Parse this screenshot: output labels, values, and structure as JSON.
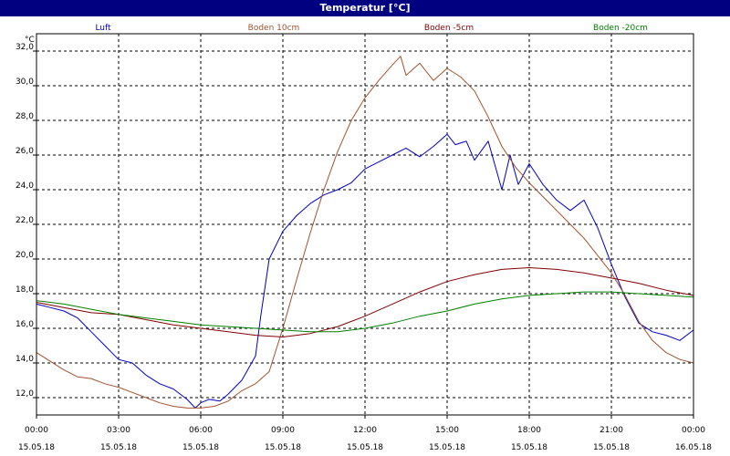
{
  "window": {
    "title": "Temperatur [°C]"
  },
  "chart_data": {
    "type": "line",
    "title": "Temperatur [°C]",
    "ylabel": "°C",
    "xlabel": "",
    "ylim": [
      11.0,
      33.0
    ],
    "y_ticks": [
      12.0,
      14.0,
      16.0,
      18.0,
      20.0,
      22.0,
      24.0,
      26.0,
      28.0,
      30.0,
      32.0
    ],
    "y_tick_labels": [
      "12,0",
      "14,0",
      "16,0",
      "18,0",
      "20,0",
      "22,0",
      "24,0",
      "26,0",
      "28,0",
      "30,0",
      "32,0"
    ],
    "xlim_hours": [
      0,
      24
    ],
    "x_ticks": [
      {
        "hour": 0,
        "time": "00:00",
        "date": "15.05.18"
      },
      {
        "hour": 3,
        "time": "03:00",
        "date": "15.05.18"
      },
      {
        "hour": 6,
        "time": "06:00",
        "date": "15.05.18"
      },
      {
        "hour": 9,
        "time": "09:00",
        "date": "15.05.18"
      },
      {
        "hour": 12,
        "time": "12:00",
        "date": "15.05.18"
      },
      {
        "hour": 15,
        "time": "15:00",
        "date": "15.05.18"
      },
      {
        "hour": 18,
        "time": "18:00",
        "date": "15.05.18"
      },
      {
        "hour": 21,
        "time": "21:00",
        "date": "15.05.18"
      },
      {
        "hour": 24,
        "time": "00:00",
        "date": "16.05.18"
      }
    ],
    "grid": true,
    "legend_position": "top",
    "series": [
      {
        "name": "Luft",
        "color": "#0000c0",
        "points": [
          [
            0,
            17.4
          ],
          [
            0.5,
            17.2
          ],
          [
            1,
            17.0
          ],
          [
            1.5,
            16.6
          ],
          [
            2,
            15.8
          ],
          [
            2.5,
            15.0
          ],
          [
            3,
            14.2
          ],
          [
            3.5,
            14.0
          ],
          [
            4,
            13.3
          ],
          [
            4.5,
            12.8
          ],
          [
            5,
            12.5
          ],
          [
            5.5,
            11.9
          ],
          [
            5.8,
            11.4
          ],
          [
            6,
            11.7
          ],
          [
            6.3,
            11.9
          ],
          [
            6.7,
            11.8
          ],
          [
            7,
            12.2
          ],
          [
            7.5,
            13.0
          ],
          [
            8,
            14.4
          ],
          [
            8.2,
            16.8
          ],
          [
            8.5,
            20.0
          ],
          [
            9,
            21.6
          ],
          [
            9.5,
            22.5
          ],
          [
            10,
            23.2
          ],
          [
            10.5,
            23.7
          ],
          [
            11,
            24.0
          ],
          [
            11.5,
            24.4
          ],
          [
            12,
            25.2
          ],
          [
            12.5,
            25.6
          ],
          [
            13,
            26.0
          ],
          [
            13.5,
            26.4
          ],
          [
            14,
            25.9
          ],
          [
            14.5,
            26.5
          ],
          [
            15,
            27.2
          ],
          [
            15.3,
            26.6
          ],
          [
            15.7,
            26.8
          ],
          [
            16,
            25.7
          ],
          [
            16.5,
            26.8
          ],
          [
            17,
            24.0
          ],
          [
            17.3,
            26.0
          ],
          [
            17.6,
            24.3
          ],
          [
            18,
            25.5
          ],
          [
            18.5,
            24.3
          ],
          [
            19,
            23.4
          ],
          [
            19.5,
            22.8
          ],
          [
            20,
            23.4
          ],
          [
            20.5,
            21.8
          ],
          [
            21,
            19.7
          ],
          [
            21.5,
            17.8
          ],
          [
            22,
            16.3
          ],
          [
            22.5,
            15.8
          ],
          [
            23,
            15.6
          ],
          [
            23.5,
            15.3
          ],
          [
            24,
            15.9
          ]
        ]
      },
      {
        "name": "Boden 10cm",
        "color": "#a0522d",
        "points": [
          [
            0,
            14.6
          ],
          [
            0.5,
            14.1
          ],
          [
            1,
            13.6
          ],
          [
            1.5,
            13.2
          ],
          [
            2,
            13.1
          ],
          [
            2.5,
            12.8
          ],
          [
            3,
            12.6
          ],
          [
            3.5,
            12.3
          ],
          [
            4,
            12.0
          ],
          [
            4.5,
            11.7
          ],
          [
            5,
            11.5
          ],
          [
            5.5,
            11.4
          ],
          [
            6,
            11.4
          ],
          [
            6.5,
            11.5
          ],
          [
            7,
            11.8
          ],
          [
            7.5,
            12.4
          ],
          [
            8,
            12.8
          ],
          [
            8.5,
            13.5
          ],
          [
            9,
            16.0
          ],
          [
            9.5,
            18.8
          ],
          [
            10,
            21.5
          ],
          [
            10.5,
            24.0
          ],
          [
            11,
            26.2
          ],
          [
            11.5,
            28.0
          ],
          [
            12,
            29.3
          ],
          [
            12.5,
            30.3
          ],
          [
            13,
            31.2
          ],
          [
            13.3,
            31.7
          ],
          [
            13.5,
            30.6
          ],
          [
            14,
            31.3
          ],
          [
            14.5,
            30.3
          ],
          [
            15,
            31.0
          ],
          [
            15.5,
            30.5
          ],
          [
            16,
            29.7
          ],
          [
            16.5,
            28.2
          ],
          [
            17,
            26.5
          ],
          [
            17.5,
            25.3
          ],
          [
            18,
            24.4
          ],
          [
            18.5,
            23.6
          ],
          [
            19,
            22.8
          ],
          [
            19.5,
            22.0
          ],
          [
            20,
            21.2
          ],
          [
            20.5,
            20.2
          ],
          [
            21,
            19.2
          ],
          [
            21.5,
            17.9
          ],
          [
            22,
            16.4
          ],
          [
            22.5,
            15.3
          ],
          [
            23,
            14.6
          ],
          [
            23.5,
            14.2
          ],
          [
            24,
            14.0
          ]
        ]
      },
      {
        "name": "Boden -5cm",
        "color": "#800000",
        "points": [
          [
            0,
            17.5
          ],
          [
            1,
            17.2
          ],
          [
            2,
            16.9
          ],
          [
            3,
            16.8
          ],
          [
            4,
            16.5
          ],
          [
            5,
            16.2
          ],
          [
            6,
            16.0
          ],
          [
            7,
            15.8
          ],
          [
            8,
            15.6
          ],
          [
            9,
            15.5
          ],
          [
            10,
            15.7
          ],
          [
            11,
            16.1
          ],
          [
            12,
            16.7
          ],
          [
            13,
            17.4
          ],
          [
            14,
            18.1
          ],
          [
            15,
            18.7
          ],
          [
            16,
            19.1
          ],
          [
            17,
            19.4
          ],
          [
            18,
            19.5
          ],
          [
            19,
            19.4
          ],
          [
            20,
            19.2
          ],
          [
            21,
            18.9
          ],
          [
            22,
            18.6
          ],
          [
            23,
            18.2
          ],
          [
            24,
            17.9
          ]
        ]
      },
      {
        "name": "Boden -20cm",
        "color": "#008000",
        "points": [
          [
            0,
            17.6
          ],
          [
            1,
            17.4
          ],
          [
            2,
            17.1
          ],
          [
            3,
            16.8
          ],
          [
            4,
            16.6
          ],
          [
            5,
            16.4
          ],
          [
            6,
            16.2
          ],
          [
            7,
            16.1
          ],
          [
            8,
            16.0
          ],
          [
            9,
            15.9
          ],
          [
            10,
            15.8
          ],
          [
            11,
            15.8
          ],
          [
            12,
            16.0
          ],
          [
            13,
            16.3
          ],
          [
            14,
            16.7
          ],
          [
            15,
            17.0
          ],
          [
            16,
            17.4
          ],
          [
            17,
            17.7
          ],
          [
            18,
            17.9
          ],
          [
            19,
            18.0
          ],
          [
            20,
            18.1
          ],
          [
            21,
            18.1
          ],
          [
            22,
            18.0
          ],
          [
            23,
            17.9
          ],
          [
            24,
            17.8
          ]
        ]
      }
    ]
  }
}
